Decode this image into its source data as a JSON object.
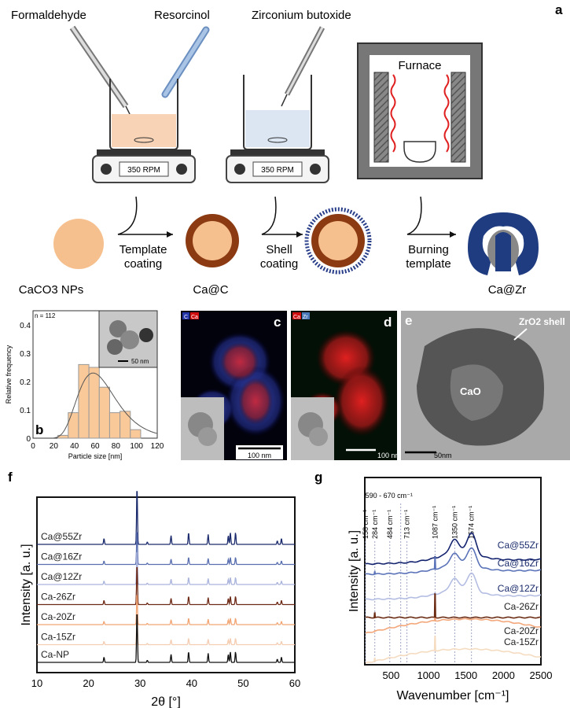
{
  "panel_labels": {
    "a": "a",
    "b": "b",
    "c": "c",
    "d": "d",
    "e": "e",
    "f": "f",
    "g": "g"
  },
  "schematic": {
    "reagents": [
      "Formaldehyde",
      "Resorcinol",
      "Zirconium butoxide"
    ],
    "stirrer_display": "350 RPM",
    "furnace_label": "Furnace",
    "steps": [
      "Template coating",
      "Shell coating",
      "Burning template"
    ],
    "step_lines": [
      [
        "Template",
        "coating"
      ],
      [
        "Shell",
        "coating"
      ],
      [
        "Burning",
        "template"
      ]
    ],
    "particles": [
      "CaCO3 NPs",
      "Ca@C",
      "Ca@Zr"
    ],
    "colors": {
      "caco3": "#f6c08e",
      "carbon": "#8b3a12",
      "zr": "#1f3c80",
      "liquid1": "#f8d3b5",
      "liquid2": "#dbe6f2"
    }
  },
  "micrographs": {
    "c": {
      "legend": [
        "C",
        "Ca"
      ],
      "scale_bar": "100 nm"
    },
    "d": {
      "legend": [
        "Ca",
        "Zr"
      ],
      "scale_bar": "100 nm"
    },
    "e": {
      "labels": [
        "ZrO2 shell",
        "CaO"
      ],
      "scale_bar": "50nm"
    },
    "b_inset": {
      "scale_bar": "50 nm"
    }
  },
  "chart_data": [
    {
      "panel": "b",
      "type": "bar",
      "annotation": "n = 112",
      "xlabel": "Particle size [nm]",
      "ylabel": "Relative frequency",
      "xlim": [
        0,
        120
      ],
      "ylim": [
        0,
        0.45
      ],
      "xticks": [
        0,
        20,
        40,
        60,
        80,
        100,
        120
      ],
      "yticks": [
        0,
        0.1,
        0.2,
        0.3,
        0.4
      ],
      "bin_edges": [
        24,
        34,
        44,
        54,
        64,
        74,
        84,
        94,
        104
      ],
      "values": [
        0.01,
        0.09,
        0.26,
        0.25,
        0.18,
        0.09,
        0.095,
        0.03
      ],
      "fit": {
        "type": "lognormal",
        "peak_x": 58,
        "peak_y": 0.23
      },
      "bar_color": "#f9c99a"
    },
    {
      "panel": "f",
      "type": "line",
      "xlabel": "2θ [°]",
      "ylabel": "Intensity [a. u.]",
      "xlim": [
        10,
        60
      ],
      "xticks": [
        10,
        20,
        30,
        40,
        50,
        60
      ],
      "peaks_2theta": [
        23.0,
        29.4,
        31.4,
        36.0,
        39.4,
        43.2,
        47.1,
        47.5,
        48.5,
        56.6,
        57.4
      ],
      "peak_rel": [
        0.1,
        1.0,
        0.04,
        0.15,
        0.2,
        0.17,
        0.15,
        0.2,
        0.2,
        0.06,
        0.1
      ],
      "series": [
        {
          "name": "Ca@55Zr",
          "color": "#1a2a6c",
          "scale": 1.0
        },
        {
          "name": "Ca@16Zr",
          "color": "#5a6fb0",
          "scale": 0.6
        },
        {
          "name": "Ca@12Zr",
          "color": "#aab4dc",
          "scale": 0.6
        },
        {
          "name": "Ca-26Zr",
          "color": "#6e2a16",
          "scale": 0.7
        },
        {
          "name": "Ca-20Zr",
          "color": "#f2a675",
          "scale": 0.55
        },
        {
          "name": "Ca-15Zr",
          "color": "#f4cdb2",
          "scale": 0.55
        },
        {
          "name": "Ca-NP",
          "color": "#111111",
          "scale": 0.9
        }
      ]
    },
    {
      "panel": "g",
      "type": "line",
      "xlabel": "Wavenumber [cm⁻¹]",
      "ylabel": "Intensity [a. u.]",
      "xlim": [
        150,
        2500
      ],
      "xticks": [
        500,
        1000,
        1500,
        2000,
        2500
      ],
      "markers": [
        {
          "x": 158,
          "label": "158 cm⁻¹"
        },
        {
          "x": 284,
          "label": "284 cm⁻¹"
        },
        {
          "x": 484,
          "label": "484 cm⁻¹"
        },
        {
          "x": 630,
          "label": "590 - 670 cm⁻¹"
        },
        {
          "x": 713,
          "label": "713 cm⁻¹"
        },
        {
          "x": 1087,
          "label": "1087 cm⁻¹"
        },
        {
          "x": 1350,
          "label": "1350 cm⁻¹"
        },
        {
          "x": 1574,
          "label": "1574 cm⁻¹"
        }
      ],
      "series": [
        {
          "name": "Ca@55Zr",
          "color": "#14236e",
          "carbon_bands": 1.0,
          "calcite": 0.05
        },
        {
          "name": "Ca@16Zr",
          "color": "#5a72b8",
          "carbon_bands": 0.85,
          "calcite": 0.5
        },
        {
          "name": "Ca@12Zr",
          "color": "#b4bde2",
          "carbon_bands": 0.85,
          "calcite": 0.05
        },
        {
          "name": "Ca-26Zr",
          "color": "#6a2a12",
          "carbon_bands": 0,
          "calcite": 1.0
        },
        {
          "name": "Ca-20Zr",
          "color": "#f3a77a",
          "carbon_bands": 0,
          "calcite": 0.1
        },
        {
          "name": "Ca-15Zr",
          "color": "#f5dcc0",
          "carbon_bands": 0,
          "calcite": 0.6
        }
      ]
    }
  ]
}
